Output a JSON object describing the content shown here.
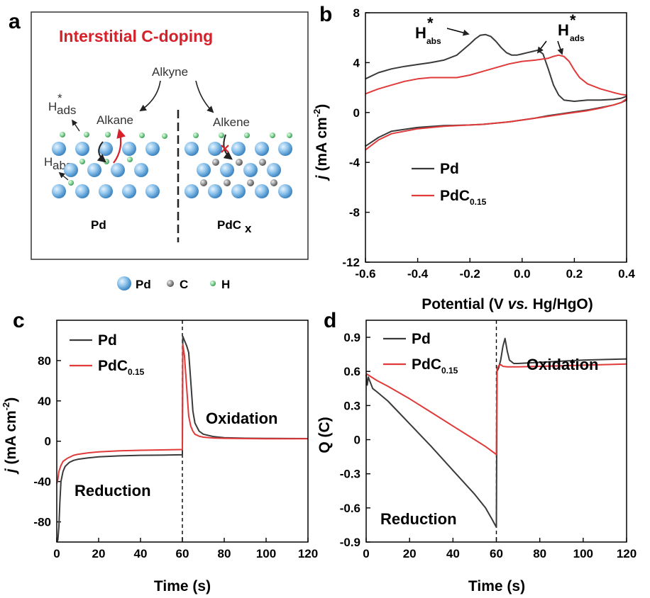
{
  "colors": {
    "pd": "#3a3a3a",
    "pdc": "#e03a3a",
    "title_red": "#d6202a",
    "pd_atom": "#8fc4ec",
    "c_atom": "#9a9a9a",
    "h_atom": "#8ad69a"
  },
  "panel_a": {
    "letter": "a",
    "title": "Interstitial C-doping",
    "alkyne": "Alkyne",
    "alkane": "Alkane",
    "alkene": "Alkene",
    "h_ads": "H*ads",
    "h_abs": "H*abs",
    "pd_label": "Pd",
    "pdcx_label": "PdCx",
    "legend": [
      {
        "name": "Pd",
        "icon": "pd-atom-icon"
      },
      {
        "name": "C",
        "icon": "c-atom-icon"
      },
      {
        "name": "H",
        "icon": "h-atom-icon"
      }
    ]
  },
  "chart_data": [
    {
      "id": "b",
      "type": "line",
      "letter": "b",
      "title": "",
      "xlabel": "Potential (V vs. Hg/HgO)",
      "ylabel": "j (mA cm-2)",
      "xlim": [
        -0.6,
        0.4
      ],
      "ylim": [
        -12,
        8
      ],
      "xticks": [
        -0.6,
        -0.4,
        -0.2,
        0.0,
        0.2,
        0.4
      ],
      "xtick_labels": [
        "-0.6",
        "-0.4",
        "-0.2",
        "0.0",
        "0.2",
        "0.4"
      ],
      "yticks": [
        -12,
        -8,
        -4,
        0,
        4,
        8
      ],
      "ytick_labels": [
        "-12",
        "-8",
        "-4",
        "0",
        "4",
        "8"
      ],
      "annotations": [
        "H*abs",
        "H*ads"
      ],
      "legend": [
        "Pd",
        "PdC0.15"
      ],
      "series": [
        {
          "name": "Pd",
          "x": [
            -0.6,
            -0.55,
            -0.5,
            -0.45,
            -0.4,
            -0.35,
            -0.3,
            -0.25,
            -0.2,
            -0.18,
            -0.16,
            -0.14,
            -0.12,
            -0.1,
            -0.08,
            -0.06,
            -0.04,
            -0.02,
            0.0,
            0.02,
            0.04,
            0.06,
            0.08,
            0.1,
            0.12,
            0.14,
            0.16,
            0.2,
            0.25,
            0.3,
            0.35,
            0.38,
            0.4,
            0.4,
            0.38,
            0.35,
            0.3,
            0.25,
            0.2,
            0.15,
            0.1,
            0.05,
            0.0,
            -0.05,
            -0.1,
            -0.15,
            -0.2,
            -0.3,
            -0.4,
            -0.5,
            -0.55,
            -0.6
          ],
          "y": [
            2.7,
            3.2,
            3.5,
            3.7,
            3.85,
            4.0,
            4.2,
            4.6,
            5.5,
            5.9,
            6.2,
            6.25,
            6.1,
            5.7,
            5.2,
            4.8,
            4.6,
            4.6,
            4.7,
            4.8,
            4.9,
            5.0,
            4.7,
            3.5,
            2.2,
            1.4,
            1.0,
            0.9,
            1.0,
            1.0,
            1.05,
            1.15,
            1.3,
            1.0,
            0.8,
            0.6,
            0.4,
            0.2,
            0.05,
            -0.1,
            -0.25,
            -0.45,
            -0.6,
            -0.75,
            -0.85,
            -0.95,
            -1.0,
            -1.05,
            -1.2,
            -1.5,
            -2.0,
            -2.7
          ]
        },
        {
          "name": "PdC0.15",
          "x": [
            -0.6,
            -0.55,
            -0.5,
            -0.45,
            -0.4,
            -0.35,
            -0.3,
            -0.25,
            -0.2,
            -0.15,
            -0.1,
            -0.05,
            0.0,
            0.05,
            0.1,
            0.12,
            0.14,
            0.16,
            0.18,
            0.2,
            0.22,
            0.25,
            0.3,
            0.35,
            0.38,
            0.4,
            0.4,
            0.38,
            0.35,
            0.3,
            0.25,
            0.2,
            0.15,
            0.1,
            0.05,
            0.0,
            -0.05,
            -0.1,
            -0.15,
            -0.2,
            -0.3,
            -0.4,
            -0.5,
            -0.55,
            -0.6
          ],
          "y": [
            1.5,
            1.9,
            2.2,
            2.5,
            2.7,
            2.8,
            2.8,
            2.8,
            3.0,
            3.3,
            3.6,
            3.9,
            4.1,
            4.2,
            4.35,
            4.5,
            4.6,
            4.5,
            4.1,
            3.4,
            2.8,
            2.3,
            1.9,
            1.6,
            1.45,
            1.4,
            1.1,
            0.8,
            0.6,
            0.35,
            0.15,
            0.0,
            -0.15,
            -0.3,
            -0.45,
            -0.6,
            -0.75,
            -0.85,
            -0.95,
            -1.0,
            -1.1,
            -1.3,
            -1.7,
            -2.2,
            -3.0
          ]
        }
      ]
    },
    {
      "id": "c",
      "type": "line",
      "letter": "c",
      "title": "",
      "xlabel": "Time (s)",
      "ylabel": "j (mA cm-2)",
      "xlim": [
        0,
        120
      ],
      "ylim": [
        -100,
        120
      ],
      "xticks": [
        0,
        20,
        40,
        60,
        80,
        100,
        120
      ],
      "xtick_labels": [
        "0",
        "20",
        "40",
        "60",
        "80",
        "100",
        "120"
      ],
      "yticks": [
        -80,
        -40,
        0,
        40,
        80
      ],
      "ytick_labels": [
        "-80",
        "-40",
        "0",
        "40",
        "80"
      ],
      "annotations": [
        "Reduction",
        "Oxidation"
      ],
      "legend": [
        "Pd",
        "PdC0.15"
      ],
      "divider_x": 60,
      "series": [
        {
          "name": "Pd",
          "x": [
            0,
            0.5,
            1,
            1.5,
            2,
            3,
            4,
            6,
            8,
            10,
            15,
            20,
            30,
            40,
            50,
            60,
            60.2,
            61,
            62,
            63,
            64,
            65,
            66,
            68,
            70,
            75,
            80,
            90,
            100,
            110,
            120
          ],
          "y": [
            -100,
            -98,
            -85,
            -60,
            -40,
            -30,
            -25,
            -21,
            -19,
            -18,
            -16.5,
            -15.5,
            -14.5,
            -14,
            -13.8,
            -13.5,
            104,
            100,
            95,
            88,
            60,
            30,
            18,
            10,
            7,
            4.5,
            3.5,
            3,
            2.8,
            2.7,
            2.6
          ]
        },
        {
          "name": "PdC0.15",
          "x": [
            0,
            0.5,
            1,
            2,
            3,
            5,
            8,
            10,
            15,
            20,
            30,
            40,
            50,
            60,
            60.2,
            61,
            62,
            63,
            64,
            65,
            66,
            68,
            70,
            75,
            80,
            90,
            100,
            110,
            120
          ],
          "y": [
            -42,
            -38,
            -30,
            -24,
            -20,
            -17,
            -14,
            -13,
            -11.5,
            -10.5,
            -9.5,
            -9,
            -8.6,
            -8.3,
            96,
            85,
            55,
            25,
            15,
            10,
            7,
            5,
            4,
            3.2,
            2.9,
            2.6,
            2.5,
            2.4,
            2.4
          ]
        }
      ]
    },
    {
      "id": "d",
      "type": "line",
      "letter": "d",
      "title": "",
      "xlabel": "Time (s)",
      "ylabel": "Q (C)",
      "xlim": [
        0,
        120
      ],
      "ylim": [
        -0.9,
        1.05
      ],
      "xticks": [
        0,
        20,
        40,
        60,
        80,
        100,
        120
      ],
      "xtick_labels": [
        "0",
        "20",
        "40",
        "60",
        "80",
        "100",
        "120"
      ],
      "yticks": [
        -0.9,
        -0.6,
        -0.3,
        0,
        0.3,
        0.6,
        0.9
      ],
      "ytick_labels": [
        "-0.9",
        "-0.6",
        "-0.3",
        "0",
        "0.3",
        "0.6",
        "0.9"
      ],
      "annotations": [
        "Reduction",
        "Oxidation"
      ],
      "legend": [
        "Pd",
        "PdC0.15"
      ],
      "divider_x": 60,
      "series": [
        {
          "name": "Pd",
          "x": [
            0,
            0.5,
            1,
            2,
            3,
            5,
            10,
            15,
            20,
            30,
            40,
            50,
            55,
            58,
            60,
            60.3,
            61,
            62,
            63,
            64,
            65,
            66,
            68,
            70,
            80,
            90,
            100,
            110,
            120
          ],
          "y": [
            0.57,
            0.48,
            0.55,
            0.5,
            0.45,
            0.42,
            0.34,
            0.24,
            0.14,
            -0.06,
            -0.27,
            -0.48,
            -0.6,
            -0.7,
            -0.77,
            0.6,
            0.63,
            0.7,
            0.82,
            0.89,
            0.78,
            0.7,
            0.67,
            0.67,
            0.68,
            0.69,
            0.7,
            0.705,
            0.71
          ]
        },
        {
          "name": "PdC0.15",
          "x": [
            0,
            5,
            10,
            20,
            30,
            40,
            50,
            55,
            60,
            60.3,
            61,
            62,
            63,
            65,
            70,
            80,
            90,
            100,
            110,
            120
          ],
          "y": [
            0.58,
            0.52,
            0.47,
            0.36,
            0.24,
            0.12,
            0.0,
            -0.06,
            -0.13,
            0.62,
            0.65,
            0.66,
            0.645,
            0.64,
            0.64,
            0.645,
            0.65,
            0.655,
            0.66,
            0.665
          ]
        }
      ]
    }
  ]
}
